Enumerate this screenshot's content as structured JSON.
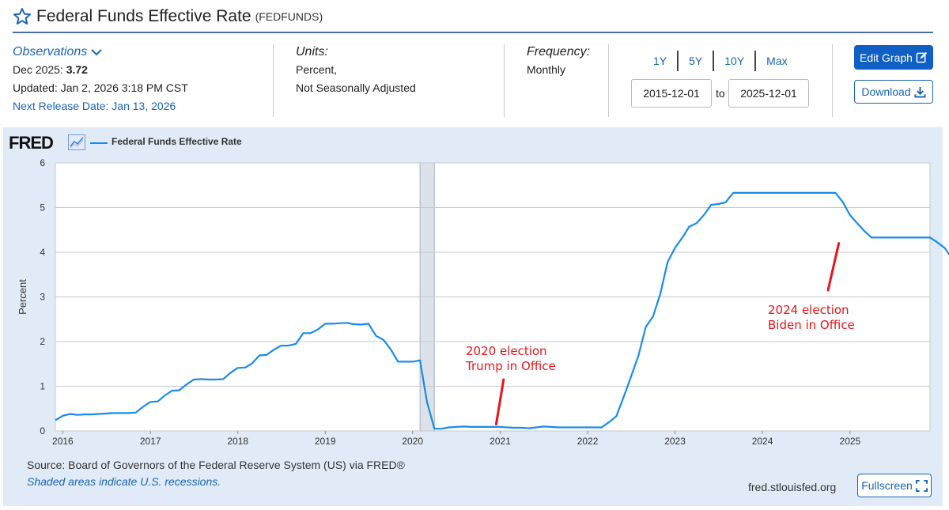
{
  "header": {
    "title": "Federal Funds Effective Rate",
    "series_id": "(FEDFUNDS)",
    "star_icon": "star-outline-icon"
  },
  "observations": {
    "label": "Observations",
    "date": "Dec 2025:",
    "value": "3.72",
    "updated": "Updated: Jan 2, 2026 3:18 PM CST",
    "next_release": "Next Release Date: Jan 13, 2026"
  },
  "units": {
    "label": "Units:",
    "line1": "Percent,",
    "line2": "Not Seasonally Adjusted"
  },
  "frequency": {
    "label": "Frequency:",
    "value": "Monthly"
  },
  "ranges": [
    "1Y",
    "5Y",
    "10Y",
    "Max"
  ],
  "dates": {
    "start": "2015-12-01",
    "to": "to",
    "end": "2025-12-01"
  },
  "buttons": {
    "edit": "Edit Graph",
    "download": "Download",
    "fullscreen": "Fullscreen"
  },
  "footer": {
    "source": "Source: Board of Governors of the Federal Reserve System (US) via FRED®",
    "shaded": "Shaded areas indicate U.S. recessions.",
    "site": "fred.stlouisfed.org"
  },
  "logo": "FRED",
  "colors": {
    "series": "#1a8be8",
    "accent": "#0f5fc4",
    "annotation": "#e8141a",
    "panel": "#e1ebf7",
    "recession": "#dde2ea"
  },
  "chart_data": {
    "type": "line",
    "title": "",
    "xlabel": "",
    "ylabel": "Percent",
    "ylim": [
      0,
      6
    ],
    "yticks": [
      0,
      1,
      2,
      3,
      4,
      5,
      6
    ],
    "xlim": [
      "2015-12-01",
      "2025-12-01"
    ],
    "xticks": [
      "2016",
      "2017",
      "2018",
      "2019",
      "2020",
      "2021",
      "2022",
      "2023",
      "2024",
      "2025"
    ],
    "grid": true,
    "legend": "top-left",
    "recession": {
      "start": "2020-02-01",
      "end": "2020-04-01"
    },
    "series": [
      {
        "name": "Federal Funds Effective Rate",
        "start": "2015-12-01",
        "frequency": "monthly",
        "values": [
          0.24,
          0.34,
          0.38,
          0.36,
          0.37,
          0.37,
          0.38,
          0.39,
          0.4,
          0.4,
          0.4,
          0.41,
          0.54,
          0.65,
          0.66,
          0.79,
          0.9,
          0.91,
          1.04,
          1.15,
          1.16,
          1.15,
          1.15,
          1.16,
          1.3,
          1.41,
          1.42,
          1.51,
          1.69,
          1.7,
          1.82,
          1.91,
          1.91,
          1.95,
          2.19,
          2.19,
          2.27,
          2.4,
          2.4,
          2.41,
          2.42,
          2.39,
          2.38,
          2.4,
          2.13,
          2.04,
          1.83,
          1.55,
          1.55,
          1.55,
          1.58,
          0.65,
          0.05,
          0.05,
          0.08,
          0.09,
          0.1,
          0.09,
          0.09,
          0.09,
          0.09,
          0.09,
          0.08,
          0.07,
          0.07,
          0.06,
          0.08,
          0.1,
          0.09,
          0.08,
          0.08,
          0.08,
          0.08,
          0.08,
          0.08,
          0.08,
          0.2,
          0.33,
          0.77,
          1.21,
          1.68,
          2.33,
          2.56,
          3.08,
          3.78,
          4.1,
          4.33,
          4.57,
          4.65,
          4.83,
          5.06,
          5.08,
          5.12,
          5.33,
          5.33,
          5.33,
          5.33,
          5.33,
          5.33,
          5.33,
          5.33,
          5.33,
          5.33,
          5.33,
          5.33,
          5.33,
          5.33,
          5.33,
          5.13,
          4.83,
          4.64,
          4.48,
          4.33,
          4.33,
          4.33,
          4.33,
          4.33,
          4.33,
          4.33,
          4.33,
          4.33,
          4.22,
          4.09,
          3.88,
          3.72
        ]
      }
    ],
    "annotations": [
      {
        "line1": "2020 election",
        "line2": "Trump in Office",
        "pointer_from": [
          "2020-12-15",
          0.15
        ],
        "pointer_to": [
          "2021-01-15",
          1.15
        ]
      },
      {
        "line1": "2024 election",
        "line2": "Biden in Office",
        "pointer_from": [
          "2024-10-01",
          3.15
        ],
        "pointer_to": [
          "2024-11-15",
          4.2
        ]
      }
    ]
  }
}
